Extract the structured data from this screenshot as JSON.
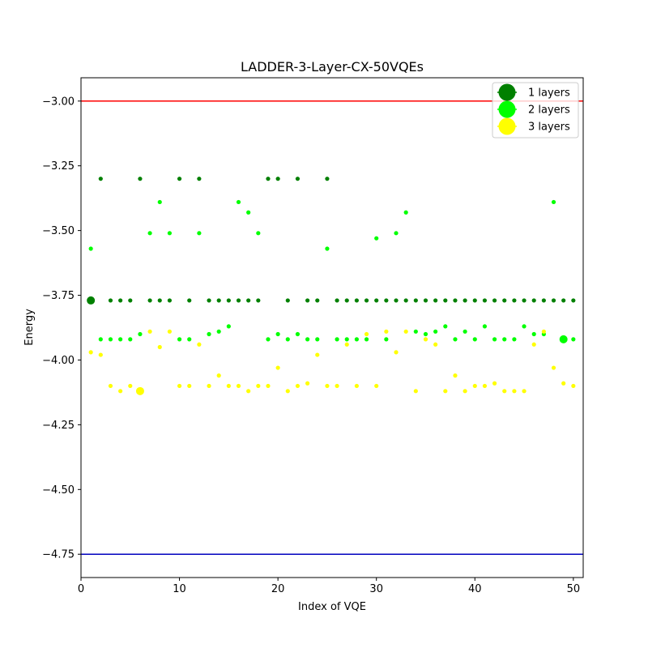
{
  "chart_data": {
    "type": "scatter",
    "title": "LADDER-3-Layer-CX-50VQEs",
    "xlabel": "Index of VQE",
    "ylabel": "Energy",
    "xlim": [
      0,
      51
    ],
    "ylim": [
      -4.84,
      -2.91
    ],
    "xticks": [
      0,
      10,
      20,
      30,
      40,
      50
    ],
    "xtick_labels": [
      "0",
      "10",
      "20",
      "30",
      "40",
      "50"
    ],
    "yticks": [
      -3.0,
      -3.25,
      -3.5,
      -3.75,
      -4.0,
      -4.25,
      -4.5,
      -4.75
    ],
    "ytick_labels": [
      "−3.00",
      "−3.25",
      "−3.50",
      "−3.75",
      "−4.00",
      "−4.25",
      "−4.50",
      "−4.75"
    ],
    "hlines": [
      {
        "y": -3.0,
        "color": "#ff0000"
      },
      {
        "y": -4.75,
        "color": "#0000bf"
      }
    ],
    "legend_position": "top-right",
    "series": [
      {
        "name": "1 layers",
        "color": "#008000",
        "x": [
          1,
          2,
          3,
          4,
          5,
          6,
          7,
          8,
          9,
          10,
          11,
          12,
          13,
          14,
          15,
          16,
          17,
          18,
          19,
          20,
          21,
          22,
          23,
          24,
          25,
          26,
          27,
          28,
          29,
          30,
          31,
          32,
          33,
          34,
          35,
          36,
          37,
          38,
          39,
          40,
          41,
          42,
          43,
          44,
          45,
          46,
          47,
          48,
          49,
          50
        ],
        "values": [
          -3.77,
          -3.3,
          -3.77,
          -3.77,
          -3.77,
          -3.3,
          -3.77,
          -3.77,
          -3.77,
          -3.3,
          -3.77,
          -3.3,
          -3.77,
          -3.77,
          -3.77,
          -3.77,
          -3.77,
          -3.77,
          -3.3,
          -3.3,
          -3.77,
          -3.3,
          -3.77,
          -3.77,
          -3.3,
          -3.77,
          -3.77,
          -3.77,
          -3.77,
          -3.77,
          -3.77,
          -3.77,
          -3.77,
          -3.77,
          -3.77,
          -3.77,
          -3.77,
          -3.77,
          -3.77,
          -3.77,
          -3.77,
          -3.77,
          -3.77,
          -3.77,
          -3.77,
          -3.77,
          -3.77,
          -3.77,
          -3.77,
          -3.77
        ],
        "highlight": {
          "x": 1,
          "y": -3.77
        }
      },
      {
        "name": "2 layers",
        "color": "#00ff00",
        "x": [
          1,
          2,
          3,
          4,
          5,
          6,
          7,
          8,
          9,
          10,
          11,
          12,
          13,
          14,
          15,
          16,
          17,
          18,
          19,
          20,
          21,
          22,
          23,
          24,
          25,
          26,
          27,
          28,
          29,
          30,
          31,
          32,
          33,
          34,
          35,
          36,
          37,
          38,
          39,
          40,
          41,
          42,
          43,
          44,
          45,
          46,
          47,
          48,
          49,
          50
        ],
        "values": [
          -3.57,
          -3.92,
          -3.92,
          -3.92,
          -3.92,
          -3.9,
          -3.51,
          -3.39,
          -3.51,
          -3.92,
          -3.92,
          -3.51,
          -3.9,
          -3.89,
          -3.87,
          -3.39,
          -3.43,
          -3.51,
          -3.92,
          -3.9,
          -3.92,
          -3.9,
          -3.92,
          -3.92,
          -3.57,
          -3.92,
          -3.92,
          -3.92,
          -3.92,
          -3.53,
          -3.92,
          -3.51,
          -3.43,
          -3.89,
          -3.9,
          -3.89,
          -3.87,
          -3.92,
          -3.89,
          -3.92,
          -3.87,
          -3.92,
          -3.92,
          -3.92,
          -3.87,
          -3.9,
          -3.9,
          -3.39,
          -3.92,
          -3.92
        ],
        "highlight": {
          "x": 49,
          "y": -3.92
        }
      },
      {
        "name": "3 layers",
        "color": "#ffff00",
        "x": [
          1,
          2,
          3,
          4,
          5,
          6,
          7,
          8,
          9,
          10,
          11,
          12,
          13,
          14,
          15,
          16,
          17,
          18,
          19,
          20,
          21,
          22,
          23,
          24,
          25,
          26,
          27,
          28,
          29,
          30,
          31,
          32,
          33,
          34,
          35,
          36,
          37,
          38,
          39,
          40,
          41,
          42,
          43,
          44,
          45,
          46,
          47,
          48,
          49,
          50
        ],
        "values": [
          -3.97,
          -3.98,
          -4.1,
          -4.12,
          -4.1,
          -4.12,
          -3.89,
          -3.95,
          -3.89,
          -4.1,
          -4.1,
          -3.94,
          -4.1,
          -4.06,
          -4.1,
          -4.1,
          -4.12,
          -4.1,
          -4.1,
          -4.03,
          -4.12,
          -4.1,
          -4.09,
          -3.98,
          -4.1,
          -4.1,
          -3.94,
          -4.1,
          -3.9,
          -4.1,
          -3.89,
          -3.97,
          -3.89,
          -4.12,
          -3.92,
          -3.94,
          -4.12,
          -4.06,
          -4.12,
          -4.1,
          -4.1,
          -4.09,
          -4.12,
          -4.12,
          -4.12,
          -3.94,
          -3.89,
          -4.03,
          -4.09,
          -4.1
        ],
        "highlight": {
          "x": 6,
          "y": -4.12
        }
      }
    ]
  }
}
